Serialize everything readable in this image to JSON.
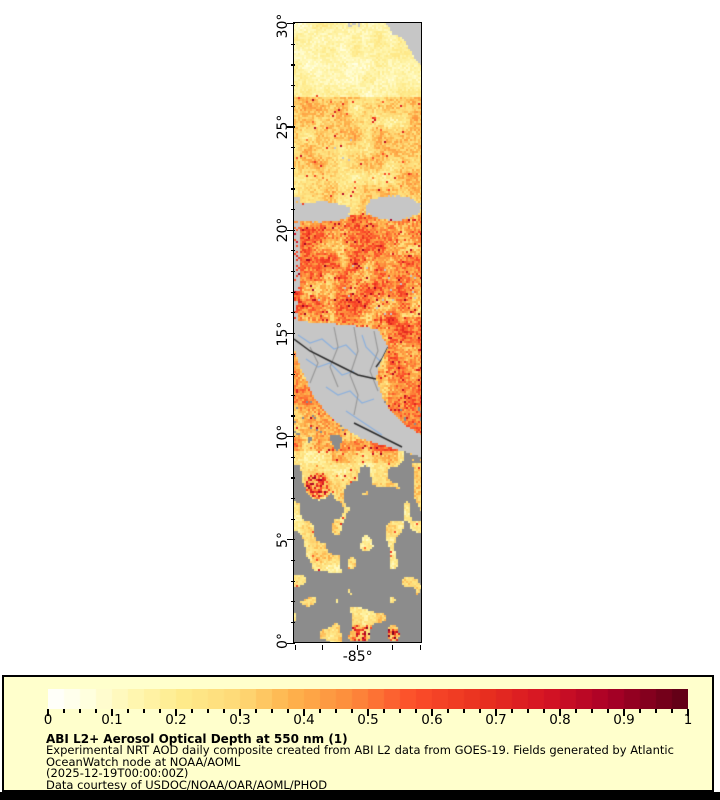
{
  "figure": {
    "map": {
      "y_axis_labels": [
        "30°",
        "25°",
        "20°",
        "15°",
        "10°",
        "5°",
        "0°"
      ],
      "x_axis_labels": [
        "-85°"
      ],
      "colors": {
        "land_nodata": "#c6c6c6",
        "cloud_nodata": "#8c8c8c",
        "river": "#8db1dd",
        "admin_border": "#9a9a9a",
        "country_border": "#2b2b2b",
        "frame": "#000000"
      }
    },
    "legend": {
      "background": "#ffffcc",
      "border_color": "#000000",
      "colorbar": {
        "min": 0,
        "max": 1,
        "step_count": 40,
        "tick_labels": [
          "0",
          "0.1",
          "0.2",
          "0.3",
          "0.4",
          "0.5",
          "0.6",
          "0.7",
          "0.8",
          "0.9",
          "1"
        ],
        "palette": [
          [
            0.0,
            "#ffffff"
          ],
          [
            0.06,
            "#ffffe0"
          ],
          [
            0.13,
            "#fff7b3"
          ],
          [
            0.21,
            "#feea8b"
          ],
          [
            0.3,
            "#fed976"
          ],
          [
            0.38,
            "#feb24c"
          ],
          [
            0.47,
            "#fd8d3c"
          ],
          [
            0.57,
            "#fc4e2a"
          ],
          [
            0.68,
            "#e8301f"
          ],
          [
            0.78,
            "#d41324"
          ],
          [
            0.88,
            "#a80026"
          ],
          [
            1.0,
            "#5c0015"
          ]
        ]
      },
      "title": "ABI L2+ Aerosol Optical Depth at 550 nm (1)",
      "lines": [
        "Experimental NRT AOD daily composite created from ABI L2 data from GOES-19. Fields generated by Atlantic",
        "OceanWatch node at NOAA/AOML",
        "(2025-12-19T00:00:00Z)",
        "Data courtesy of USDOC/NOAA/OAR/AOML/PHOD"
      ]
    }
  },
  "chart_data": {
    "type": "heatmap",
    "title": "ABI L2+ Aerosol Optical Depth at 550 nm (1)",
    "value_range": [
      0,
      1
    ],
    "colorbar_ticks": [
      0,
      0.1,
      0.2,
      0.3,
      0.4,
      0.5,
      0.6,
      0.7,
      0.8,
      0.9,
      1
    ],
    "lat_ticks_deg": [
      30,
      25,
      20,
      15,
      10,
      5,
      0
    ],
    "lon_tick_deg": -85,
    "legend_position": "bottom"
  }
}
